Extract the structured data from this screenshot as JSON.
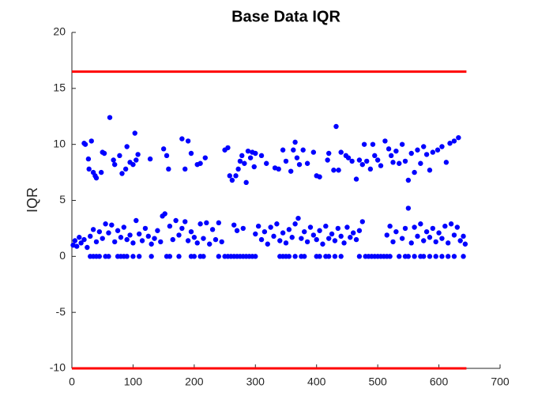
{
  "chart_data": {
    "type": "scatter",
    "title": "Base Data IQR",
    "ylabel": "IQR",
    "xlim": [
      0,
      700
    ],
    "ylim": [
      -10,
      20
    ],
    "xticks": [
      0,
      100,
      200,
      300,
      400,
      500,
      600,
      700
    ],
    "yticks": [
      -10,
      -5,
      0,
      5,
      10,
      15,
      20
    ],
    "points": {
      "color": "#0000ff",
      "x": [
        20,
        22,
        27,
        28,
        32,
        35,
        38,
        40,
        48,
        50,
        53,
        62,
        68,
        70,
        78,
        82,
        88,
        90,
        95,
        100,
        103,
        105,
        108,
        128,
        150,
        155,
        158,
        180,
        185,
        190,
        195,
        205,
        210,
        218,
        250,
        255,
        258,
        262,
        268,
        272,
        275,
        278,
        282,
        285,
        288,
        292,
        295,
        298,
        300,
        310,
        318,
        332,
        338,
        345,
        350,
        358,
        362,
        365,
        368,
        372,
        378,
        385,
        395,
        400,
        405,
        418,
        420,
        428,
        432,
        436,
        440,
        448,
        452,
        458,
        465,
        470,
        475,
        478,
        482,
        488,
        492,
        495,
        500,
        505,
        512,
        518,
        522,
        525,
        530,
        535,
        540,
        545,
        550,
        555,
        560,
        565,
        570,
        575,
        580,
        585,
        590,
        598,
        605,
        612,
        618,
        625,
        632,
        2,
        5,
        8,
        12,
        15,
        20,
        25,
        30,
        35,
        40,
        45,
        50,
        55,
        60,
        65,
        70,
        75,
        80,
        85,
        90,
        95,
        100,
        105,
        110,
        115,
        120,
        125,
        130,
        135,
        140,
        145,
        148,
        152,
        160,
        165,
        170,
        175,
        180,
        185,
        190,
        195,
        200,
        205,
        210,
        215,
        220,
        225,
        230,
        235,
        240,
        245,
        265,
        270,
        280,
        300,
        305,
        310,
        315,
        320,
        325,
        330,
        335,
        340,
        345,
        350,
        355,
        360,
        365,
        370,
        375,
        380,
        385,
        390,
        395,
        400,
        405,
        410,
        415,
        420,
        425,
        430,
        435,
        440,
        445,
        450,
        455,
        460,
        465,
        470,
        475,
        515,
        520,
        525,
        530,
        540,
        545,
        550,
        555,
        560,
        565,
        570,
        575,
        580,
        585,
        590,
        595,
        600,
        605,
        610,
        615,
        620,
        625,
        630,
        635,
        640,
        643,
        30,
        35,
        40,
        45,
        55,
        60,
        75,
        80,
        85,
        90,
        100,
        110,
        130,
        155,
        160,
        175,
        195,
        200,
        210,
        215,
        240,
        250,
        255,
        260,
        265,
        270,
        275,
        280,
        285,
        290,
        295,
        300,
        340,
        345,
        350,
        355,
        365,
        375,
        380,
        400,
        405,
        415,
        420,
        430,
        440,
        470,
        480,
        485,
        490,
        495,
        500,
        505,
        510,
        515,
        520,
        535,
        545,
        550,
        560,
        570,
        575,
        585,
        595,
        605,
        615,
        625,
        640
      ],
      "y": [
        10.1,
        10,
        8.7,
        7.8,
        10.3,
        7.5,
        7.2,
        7,
        7.5,
        9.3,
        9.2,
        12.4,
        8.6,
        8.2,
        9,
        7.4,
        7.8,
        9.8,
        8.4,
        8.2,
        11,
        8.6,
        9.1,
        8.7,
        9.6,
        9,
        7.8,
        10.5,
        7.8,
        10.3,
        9.2,
        8.2,
        8.3,
        8.8,
        9.5,
        9.7,
        7.2,
        6.8,
        7.2,
        7.8,
        8.5,
        9,
        8.3,
        6.6,
        9.4,
        8.8,
        9.3,
        8,
        9.2,
        9,
        8.3,
        7.9,
        7.8,
        9.5,
        8.5,
        7.6,
        9.5,
        10.2,
        8.8,
        8.2,
        9.5,
        8.3,
        9.3,
        7.2,
        7.1,
        8.6,
        9.2,
        7.7,
        11.6,
        7.7,
        9.3,
        9,
        8.8,
        8.5,
        6.9,
        8.6,
        8.2,
        10,
        8.5,
        7.8,
        10,
        9,
        8.6,
        8.1,
        10.3,
        9.6,
        9,
        8.4,
        9.4,
        8.3,
        10,
        8.5,
        6.8,
        9.2,
        7.5,
        9.5,
        8.3,
        9.8,
        9.1,
        7.7,
        9.3,
        9.5,
        9.8,
        8.4,
        10.1,
        10.3,
        10.6,
        1,
        1.4,
        0.9,
        1.7,
        1.2,
        1.5,
        0.8,
        1.8,
        2.4,
        1.3,
        2.2,
        1.6,
        2.9,
        2.1,
        2.8,
        1.3,
        2.3,
        1.7,
        2.6,
        1.5,
        1.9,
        1.2,
        3.2,
        2,
        1.4,
        2.5,
        1.8,
        1.1,
        1.6,
        2.3,
        1.3,
        3.6,
        3.8,
        2.7,
        1.5,
        3.2,
        1.9,
        2.5,
        3.1,
        1.4,
        2.2,
        1.7,
        1.2,
        2.9,
        1.6,
        3,
        1.1,
        2.4,
        1.5,
        3,
        1.3,
        2.8,
        2.3,
        2.5,
        2,
        2.7,
        1.5,
        2.2,
        1.1,
        2.6,
        1.8,
        2.9,
        1.4,
        2.1,
        1.2,
        2.4,
        1.7,
        2.9,
        3.4,
        1.6,
        2.2,
        1.3,
        2.6,
        1.9,
        1.5,
        2.3,
        1.1,
        2.7,
        1.6,
        2,
        1.4,
        2.5,
        1.8,
        1.2,
        2.6,
        1.7,
        2.1,
        1.5,
        2.3,
        3.1,
        1.9,
        2.7,
        1.3,
        2.2,
        1.6,
        2.5,
        4.3,
        1.2,
        2.6,
        1.8,
        2.9,
        1.4,
        2.2,
        1.7,
        2.5,
        1.3,
        2.1,
        1.6,
        2.7,
        1.2,
        2.9,
        1.9,
        2.6,
        1.4,
        1.8,
        1.1,
        0,
        0,
        0,
        0,
        0,
        0,
        0,
        0,
        0,
        0,
        0,
        0,
        0,
        0,
        0,
        0,
        0,
        0,
        0,
        0,
        0,
        0,
        0,
        0,
        0,
        0,
        0,
        0,
        0,
        0,
        0,
        0,
        0,
        0,
        0,
        0,
        0,
        0,
        0,
        0,
        0,
        0,
        0,
        0,
        0,
        0,
        0,
        0,
        0,
        0,
        0,
        0,
        0,
        0,
        0,
        0,
        0,
        0,
        0,
        0,
        0,
        0,
        0,
        0,
        0,
        0,
        0
      ]
    },
    "lines": [
      {
        "color": "#ff0000",
        "x": [
          0,
          645
        ],
        "y": [
          16.5,
          16.5
        ]
      },
      {
        "color": "#ff0000",
        "x": [
          0,
          645
        ],
        "y": [
          -10,
          -10
        ]
      }
    ]
  }
}
